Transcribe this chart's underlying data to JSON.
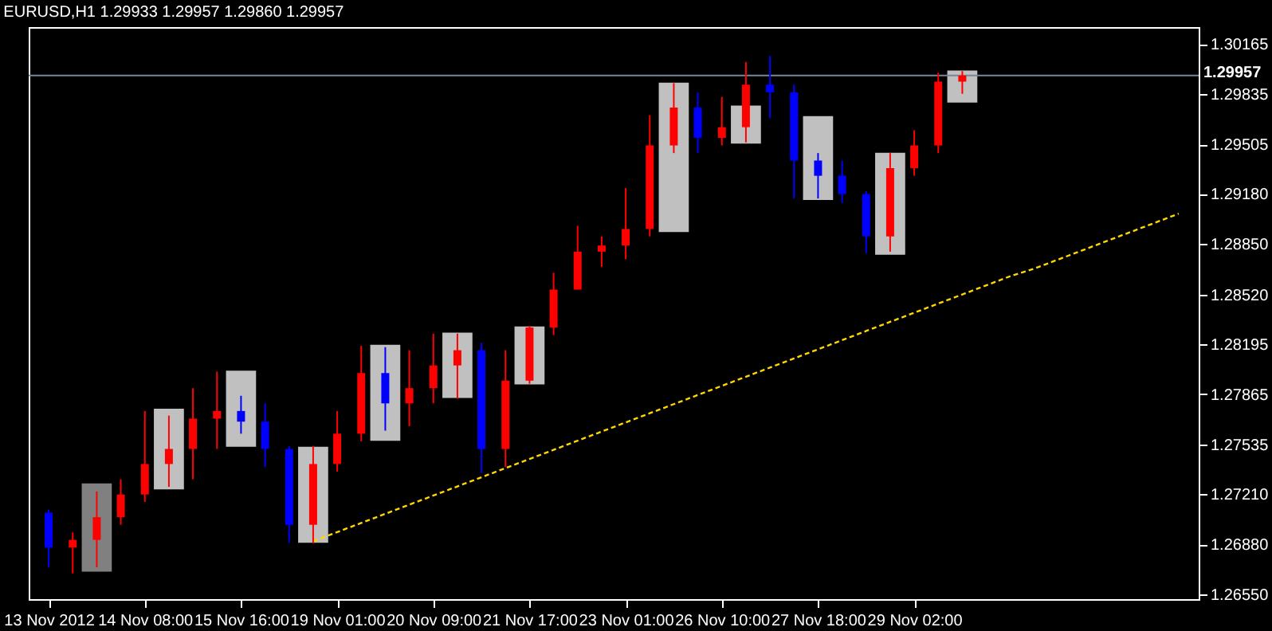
{
  "chart_data": {
    "type": "candlestick",
    "title": "EURUSD,H1  1.29933 1.29957 1.29860 1.29957",
    "categories": [
      "13 Nov 2012",
      null,
      null,
      null,
      "14 Nov 08:00",
      null,
      null,
      null,
      "15 Nov 16:00",
      null,
      null,
      null,
      "19 Nov 01:00",
      null,
      null,
      null,
      "20 Nov 09:00",
      null,
      null,
      null,
      "21 Nov 17:00",
      null,
      null,
      null,
      "23 Nov 01:00",
      null,
      null,
      null,
      "26 Nov 10:00",
      null,
      null,
      null,
      "27 Nov 18:00",
      null,
      null,
      null,
      "29 Nov 02:00",
      null,
      null,
      null,
      null,
      null,
      null,
      null,
      null,
      null,
      null,
      null
    ],
    "ohlc": [
      [
        1.27088,
        1.27108,
        1.26729,
        1.26859
      ],
      [
        1.26859,
        1.26958,
        1.26689,
        1.26909
      ],
      [
        1.26909,
        1.27227,
        1.26729,
        1.27058
      ],
      [
        1.27058,
        1.27307,
        1.27008,
        1.27207
      ],
      [
        1.27207,
        1.27755,
        1.27158,
        1.27407
      ],
      [
        1.27407,
        1.27725,
        1.27257,
        1.27506
      ],
      [
        1.27506,
        1.27905,
        1.27307,
        1.27705
      ],
      [
        1.27705,
        1.28014,
        1.27506,
        1.27755
      ],
      [
        1.27755,
        1.27855,
        1.27606,
        1.27685
      ],
      [
        1.27685,
        1.27805,
        1.27387,
        1.27506
      ],
      [
        1.27506,
        1.27526,
        1.26889,
        1.27008
      ],
      [
        1.27008,
        1.27526,
        1.26889,
        1.27407
      ],
      [
        1.27407,
        1.27755,
        1.27357,
        1.27606
      ],
      [
        1.27606,
        1.28183,
        1.27556,
        1.28004
      ],
      [
        1.28004,
        1.28174,
        1.27626,
        1.27805
      ],
      [
        1.27805,
        1.28154,
        1.27656,
        1.27905
      ],
      [
        1.27905,
        1.28263,
        1.27805,
        1.28054
      ],
      [
        1.28054,
        1.28263,
        1.27835,
        1.28154
      ],
      [
        1.28154,
        1.28203,
        1.27347,
        1.27506
      ],
      [
        1.27506,
        1.28154,
        1.27387,
        1.27954
      ],
      [
        1.27954,
        1.28313,
        1.27934,
        1.28303
      ],
      [
        1.28303,
        1.28662,
        1.28253,
        1.28552
      ],
      [
        1.28552,
        1.2897,
        1.28552,
        1.28801
      ],
      [
        1.28801,
        1.28901,
        1.28701,
        1.28841
      ],
      [
        1.28841,
        1.29219,
        1.28751,
        1.2895
      ],
      [
        1.2895,
        1.29697,
        1.28901,
        1.29498
      ],
      [
        1.29498,
        1.29907,
        1.29448,
        1.29747
      ],
      [
        1.29747,
        1.29847,
        1.29448,
        1.29548
      ],
      [
        1.29548,
        1.29817,
        1.29498,
        1.29618
      ],
      [
        1.29618,
        1.30046,
        1.29518,
        1.29897
      ],
      [
        1.29897,
        1.30086,
        1.29677,
        1.29847
      ],
      [
        1.29847,
        1.29897,
        1.2915,
        1.29399
      ],
      [
        1.29399,
        1.29448,
        1.2915,
        1.29299
      ],
      [
        1.29299,
        1.29399,
        1.2912,
        1.29179
      ],
      [
        1.29179,
        1.29199,
        1.28791,
        1.28901
      ],
      [
        1.28901,
        1.29448,
        1.28801,
        1.29349
      ],
      [
        1.29349,
        1.29598,
        1.29299,
        1.29498
      ],
      [
        1.29498,
        1.29976,
        1.29448,
        1.29917
      ],
      [
        1.29917,
        1.29986,
        1.29837,
        1.29957
      ],
      null,
      null,
      null,
      null,
      null,
      null,
      null,
      null,
      null
    ],
    "colors": [
      "#0000ff",
      "#ff0000",
      "#ff0000",
      "#ff0000",
      "#ff0000",
      "#ff0000",
      "#ff0000",
      "#ff0000",
      "#0000ff",
      "#0000ff",
      "#0000ff",
      "#ff0000",
      "#ff0000",
      "#ff0000",
      "#0000ff",
      "#ff0000",
      "#ff0000",
      "#ff0000",
      "#0000ff",
      "#ff0000",
      "#ff0000",
      "#ff0000",
      "#ff0000",
      "#ff0000",
      "#ff0000",
      "#ff0000",
      "#ff0000",
      "#0000ff",
      "#ff0000",
      "#ff0000",
      "#0000ff",
      "#0000ff",
      "#0000ff",
      "#0000ff",
      "#0000ff",
      "#ff0000",
      "#ff0000",
      "#ff0000",
      "#ff0000",
      null,
      null,
      null,
      null,
      null,
      null,
      null,
      null,
      null
    ],
    "series": [
      {
        "type": "bar",
        "base": [
          null,
          null,
          1.267,
          null,
          null,
          1.2724,
          null,
          null,
          1.2752,
          null,
          null,
          1.2689,
          null,
          null,
          1.2756,
          null,
          null,
          1.2784,
          null,
          null,
          1.2793,
          null,
          null,
          null,
          null,
          null,
          1.2893,
          null,
          null,
          1.2951,
          null,
          null,
          1.2914,
          null,
          null,
          1.2878,
          null,
          null,
          1.2978,
          null,
          null,
          null,
          null,
          null,
          null,
          null,
          null,
          null
        ],
        "values": [
          null,
          null,
          0.0058,
          null,
          null,
          0.0053,
          null,
          null,
          0.005,
          null,
          null,
          0.0063,
          null,
          null,
          0.0063,
          null,
          null,
          0.0043,
          null,
          null,
          0.0038,
          null,
          null,
          null,
          null,
          null,
          0.0098,
          null,
          null,
          0.0025,
          null,
          null,
          0.0055,
          null,
          null,
          0.0067,
          null,
          null,
          0.0021,
          null,
          null,
          null,
          null,
          null,
          null,
          null,
          null,
          null
        ],
        "colors": [
          null,
          null,
          "#808080",
          null,
          null,
          "#c0c0c0",
          null,
          null,
          "#c0c0c0",
          null,
          null,
          "#c0c0c0",
          null,
          null,
          "#c0c0c0",
          null,
          null,
          "#c0c0c0",
          null,
          null,
          "#c0c0c0",
          null,
          null,
          null,
          null,
          null,
          "#c0c0c0",
          null,
          null,
          "#c0c0c0",
          null,
          null,
          "#c0c0c0",
          null,
          null,
          "#c0c0c0",
          null,
          null,
          "#c0c0c0",
          null,
          null,
          null,
          null,
          null,
          null,
          null,
          null,
          null
        ]
      },
      {
        "type": "line",
        "color": "#ffd700",
        "line_style": "dashed",
        "values": [
          null,
          null,
          null,
          null,
          null,
          null,
          null,
          null,
          null,
          null,
          null,
          1.269,
          1.2696,
          1.2702,
          1.2708,
          1.2714,
          1.272,
          1.2726,
          1.2732,
          1.2738,
          1.2744,
          1.275,
          1.2756,
          1.2762,
          1.2768,
          1.2774,
          1.278,
          1.2786,
          1.2792,
          1.2798,
          1.2804,
          1.281,
          1.2816,
          1.2822,
          1.2828,
          1.2834,
          1.284,
          1.2846,
          1.2852,
          1.2858,
          1.2864,
          1.2869,
          1.2875,
          1.2881,
          1.2887,
          1.2893,
          1.2899,
          1.2905
        ]
      }
    ],
    "ref_lines": [
      {
        "axis": "y",
        "value": 1.29957,
        "label": "1.29957",
        "color": "#778899"
      }
    ],
    "ylim": [
      1.2652,
      1.30275
    ],
    "yticks": [
      {
        "value": 1.2655,
        "label": "1.26550"
      },
      {
        "value": 1.2688,
        "label": "1.26880"
      },
      {
        "value": 1.2721,
        "label": "1.27210"
      },
      1.27535,
      1.27865,
      1.28195,
      {
        "value": 1.2852,
        "label": "1.28520"
      },
      {
        "value": 1.2885,
        "label": "1.28850"
      },
      {
        "value": 1.2918,
        "label": "1.29180"
      },
      1.29505,
      1.29835,
      1.30165
    ],
    "grid": false
  }
}
